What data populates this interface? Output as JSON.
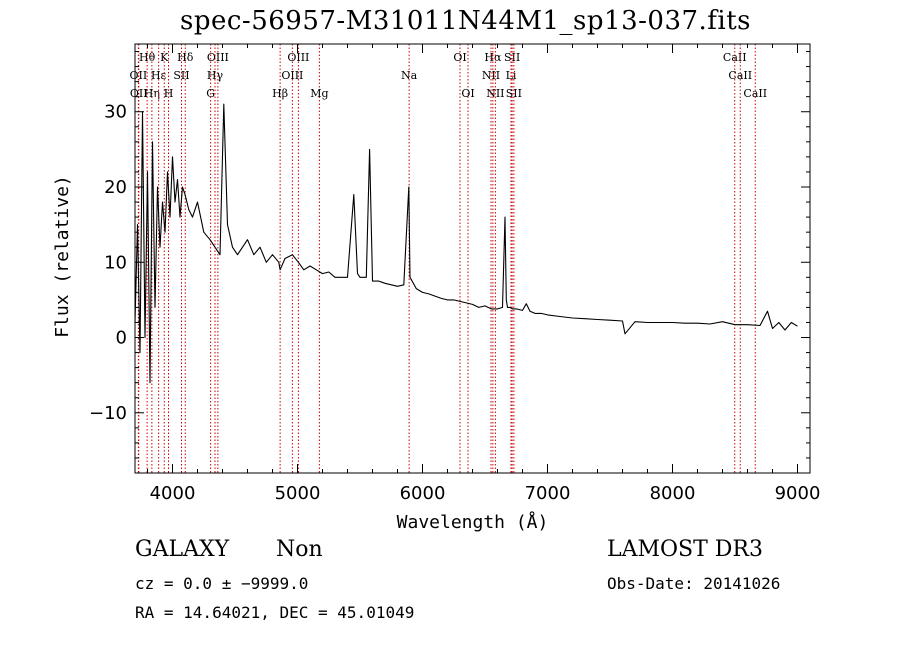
{
  "chart_data": {
    "type": "line",
    "title": "spec-56957-M31011N44M1_sp13-037.fits",
    "xlabel": "Wavelength (Å)",
    "ylabel": "Flux (relative)",
    "xlim": [
      3700,
      9100
    ],
    "ylim": [
      -18,
      39
    ],
    "xticks": [
      4000,
      5000,
      6000,
      7000,
      8000,
      9000
    ],
    "yticks": [
      -10,
      0,
      10,
      20,
      30
    ],
    "xtick_labels": [
      "4000",
      "5000",
      "6000",
      "7000",
      "8000",
      "9000"
    ],
    "ytick_labels": [
      "−10",
      "0",
      "10",
      "20",
      "30"
    ],
    "grid": false,
    "series": [
      {
        "name": "flux",
        "x": [
          3700,
          3720,
          3740,
          3760,
          3780,
          3800,
          3820,
          3840,
          3860,
          3880,
          3900,
          3920,
          3940,
          3960,
          3980,
          4000,
          4020,
          4040,
          4060,
          4080,
          4100,
          4130,
          4160,
          4200,
          4250,
          4300,
          4340,
          4380,
          4410,
          4440,
          4480,
          4520,
          4560,
          4600,
          4650,
          4700,
          4750,
          4800,
          4850,
          4861,
          4900,
          4959,
          5007,
          5050,
          5100,
          5150,
          5200,
          5250,
          5300,
          5350,
          5400,
          5450,
          5480,
          5500,
          5550,
          5577,
          5600,
          5650,
          5700,
          5750,
          5800,
          5850,
          5890,
          5900,
          5950,
          6000,
          6050,
          6100,
          6150,
          6200,
          6250,
          6300,
          6350,
          6400,
          6450,
          6500,
          6550,
          6600,
          6640,
          6660,
          6670,
          6680,
          6700,
          6720,
          6750,
          6800,
          6830,
          6860,
          6900,
          6950,
          7000,
          7100,
          7200,
          7300,
          7400,
          7500,
          7600,
          7620,
          7700,
          7800,
          7900,
          8000,
          8100,
          8200,
          8300,
          8400,
          8500,
          8600,
          8700,
          8760,
          8800,
          8850,
          8900,
          8950,
          9000
        ],
        "values": [
          2,
          15,
          -2,
          30,
          0,
          22,
          -6,
          26,
          4,
          20,
          12,
          18,
          14,
          22,
          16,
          24,
          18,
          21,
          16,
          20,
          19,
          17,
          16,
          18,
          14,
          13,
          12,
          11,
          31,
          15,
          12,
          11,
          12,
          13,
          11,
          12,
          10,
          11,
          10,
          9,
          10.5,
          11,
          10,
          9,
          9.5,
          9,
          8.5,
          8.7,
          8,
          8,
          8,
          19,
          8.5,
          8,
          8,
          25,
          7.5,
          7.5,
          7.2,
          7,
          6.8,
          7,
          20,
          8,
          6.5,
          6,
          5.8,
          5.5,
          5.2,
          5,
          5,
          4.8,
          4.6,
          4.4,
          4,
          4.2,
          3.8,
          3.8,
          4,
          16,
          5,
          4,
          4,
          3.8,
          3.8,
          3.6,
          4.5,
          3.5,
          3.2,
          3.2,
          3,
          2.8,
          2.6,
          2.5,
          2.4,
          2.3,
          2.2,
          0.5,
          2.1,
          2,
          2,
          2,
          1.9,
          1.9,
          1.8,
          2.1,
          1.7,
          1.7,
          1.6,
          3.5,
          1.2,
          2,
          1,
          2,
          1.5
        ]
      }
    ],
    "lines": [
      {
        "label": "OII",
        "wavelength": 3727,
        "row": 1
      },
      {
        "label": "Hθ",
        "wavelength": 3797,
        "row": 0
      },
      {
        "label": "OII",
        "wavelength": 3730,
        "row": 2
      },
      {
        "label": "Hη",
        "wavelength": 3835,
        "row": 2
      },
      {
        "label": "Hε",
        "wavelength": 3889,
        "row": 1
      },
      {
        "label": "K",
        "wavelength": 3934,
        "row": 0
      },
      {
        "label": "H",
        "wavelength": 3968,
        "row": 2
      },
      {
        "label": "SII",
        "wavelength": 4072,
        "row": 1
      },
      {
        "label": "Hδ",
        "wavelength": 4102,
        "row": 0
      },
      {
        "label": "OIII",
        "wavelength": 4363,
        "row": 0
      },
      {
        "label": "Hγ",
        "wavelength": 4340,
        "row": 1
      },
      {
        "label": "G",
        "wavelength": 4305,
        "row": 2
      },
      {
        "label": "Hβ",
        "wavelength": 4861,
        "row": 2
      },
      {
        "label": "OIII",
        "wavelength": 5007,
        "row": 0
      },
      {
        "label": "OIII",
        "wavelength": 4959,
        "row": 1
      },
      {
        "label": "Mg",
        "wavelength": 5175,
        "row": 2
      },
      {
        "label": "Na",
        "wavelength": 5893,
        "row": 1
      },
      {
        "label": "OI",
        "wavelength": 6300,
        "row": 0
      },
      {
        "label": "OI",
        "wavelength": 6364,
        "row": 2
      },
      {
        "label": "Hα",
        "wavelength": 6563,
        "row": 0
      },
      {
        "label": "NII",
        "wavelength": 6548,
        "row": 1
      },
      {
        "label": "NII",
        "wavelength": 6583,
        "row": 2
      },
      {
        "label": "SII",
        "wavelength": 6717,
        "row": 0
      },
      {
        "label": "Li",
        "wavelength": 6708,
        "row": 1
      },
      {
        "label": "SII",
        "wavelength": 6731,
        "row": 2
      },
      {
        "label": "CaII",
        "wavelength": 8498,
        "row": 0
      },
      {
        "label": "CaII",
        "wavelength": 8542,
        "row": 1
      },
      {
        "label": "CaII",
        "wavelength": 8662,
        "row": 2
      }
    ]
  },
  "info": {
    "class": "GALAXY",
    "subclass": "Non",
    "survey": "LAMOST DR3",
    "cz": "cz = 0.0 ± −9999.0",
    "obs_date": "Obs-Date: 20141026",
    "coords": "RA =  14.64021, DEC =  45.01049"
  },
  "colors": {
    "line_marker": "#cc0000",
    "spectrum": "#000000",
    "axes": "#000000"
  }
}
